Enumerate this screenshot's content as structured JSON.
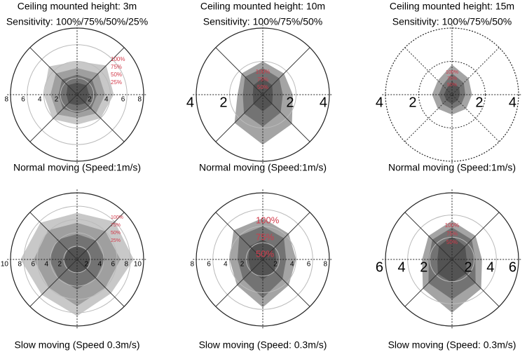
{
  "panels": [
    {
      "title": "Ceiling mounted height: 3m",
      "sensitivity": "Sensitivity: 100%/75%/50%/25%",
      "ticks_left": [
        8,
        6,
        4,
        2
      ],
      "ticks_right": [
        2,
        4,
        6,
        8
      ],
      "levels": [
        "100%",
        "75%",
        "50%",
        "25%"
      ],
      "caption": "Normal moving (Speed:1m/s)"
    },
    {
      "title": "Ceiling mounted height: 10m",
      "sensitivity": "Sensitivity: 100%/75%/50%",
      "ticks_left": [
        4,
        2
      ],
      "ticks_right": [
        2,
        4
      ],
      "levels": [
        "100%",
        "75%",
        "50%"
      ],
      "caption": "Normal moving (Speed:1m/s)"
    },
    {
      "title": "Ceiling mounted height: 15m",
      "sensitivity": "Sensitivity: 100%/75%/50%",
      "ticks_left": [
        4,
        2
      ],
      "ticks_right": [
        2,
        4
      ],
      "levels": [
        "100%",
        "75%",
        "50%"
      ],
      "caption": "Normal moving (Speed:1m/s)"
    },
    {
      "ticks_left": [
        10,
        8,
        6,
        4,
        2
      ],
      "ticks_right": [
        2,
        4,
        6,
        8,
        10
      ],
      "levels": [
        "100%",
        "75%",
        "50%",
        "25%"
      ],
      "caption": "Slow moving (Speed 0.3m/s)"
    },
    {
      "ticks_left": [
        8,
        6,
        4,
        2
      ],
      "ticks_right": [
        2,
        4,
        6,
        8
      ],
      "levels": [
        "100%",
        "75%",
        "50%"
      ],
      "caption": "Slow moving (Speed: 0.3m/s)"
    },
    {
      "ticks_left": [
        6,
        4,
        2
      ],
      "ticks_right": [
        2,
        4,
        6
      ],
      "levels": [
        "100%",
        "75%",
        "50%"
      ],
      "caption": "Slow moving (Speed: 0.3m/s)"
    }
  ]
}
